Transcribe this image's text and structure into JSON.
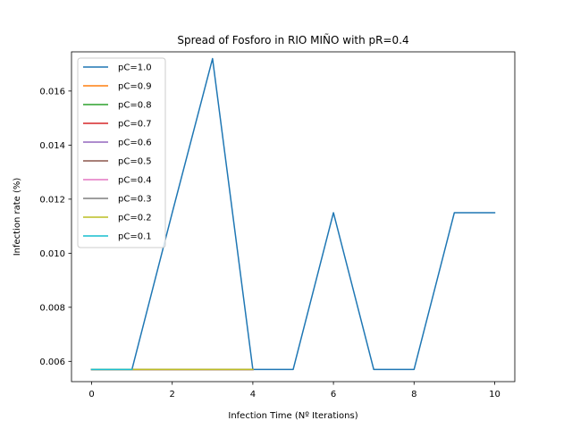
{
  "chart_data": {
    "type": "line",
    "title": "Spread of Fosforo in RIO MIÑO with pR=0.4",
    "xlabel": "Infection Time (Nº Iterations)",
    "ylabel": "Infection rate (%)",
    "xlim": [
      -0.5,
      10.5
    ],
    "ylim": [
      0.00525,
      0.01745
    ],
    "xticks": [
      0,
      2,
      4,
      6,
      8,
      10
    ],
    "xtick_labels": [
      "0",
      "2",
      "4",
      "6",
      "8",
      "10"
    ],
    "yticks": [
      0.006,
      0.008,
      0.01,
      0.012,
      0.014,
      0.016
    ],
    "ytick_labels": [
      "0.006",
      "0.008",
      "0.010",
      "0.012",
      "0.014",
      "0.016"
    ],
    "grid": false,
    "legend_position": "top-left",
    "series": [
      {
        "name": "pC=1.0",
        "color": "#1f77b4",
        "x": [
          0,
          1,
          2,
          3,
          4,
          5,
          6,
          7,
          8,
          9,
          10
        ],
        "y": [
          0.0057,
          0.0057,
          0.0115,
          0.0172,
          0.0057,
          0.0057,
          0.0115,
          0.0057,
          0.0057,
          0.0115,
          0.0115
        ]
      },
      {
        "name": "pC=0.9",
        "color": "#ff7f0e",
        "x": [
          0,
          1,
          2,
          3,
          4
        ],
        "y": [
          0.0057,
          0.0057,
          0.0057,
          0.0057,
          0.0057
        ]
      },
      {
        "name": "pC=0.8",
        "color": "#2ca02c",
        "x": [
          0,
          1,
          2,
          3,
          4
        ],
        "y": [
          0.0057,
          0.0057,
          0.0057,
          0.0057,
          0.0057
        ]
      },
      {
        "name": "pC=0.7",
        "color": "#d62728",
        "x": [
          0,
          1,
          2,
          3,
          4
        ],
        "y": [
          0.0057,
          0.0057,
          0.0057,
          0.0057,
          0.0057
        ]
      },
      {
        "name": "pC=0.6",
        "color": "#9467bd",
        "x": [
          0,
          1,
          2,
          3,
          4
        ],
        "y": [
          0.0057,
          0.0057,
          0.0057,
          0.0057,
          0.0057
        ]
      },
      {
        "name": "pC=0.5",
        "color": "#8c564b",
        "x": [
          0,
          1,
          2,
          3,
          4
        ],
        "y": [
          0.0057,
          0.0057,
          0.0057,
          0.0057,
          0.0057
        ]
      },
      {
        "name": "pC=0.4",
        "color": "#e377c2",
        "x": [
          0,
          1,
          2,
          3,
          4
        ],
        "y": [
          0.0057,
          0.0057,
          0.0057,
          0.0057,
          0.0057
        ]
      },
      {
        "name": "pC=0.3",
        "color": "#7f7f7f",
        "x": [
          0,
          1,
          2,
          3,
          4
        ],
        "y": [
          0.0057,
          0.0057,
          0.0057,
          0.0057,
          0.0057
        ]
      },
      {
        "name": "pC=0.2",
        "color": "#bcbd22",
        "x": [
          0,
          1,
          2,
          3,
          4
        ],
        "y": [
          0.0057,
          0.0057,
          0.0057,
          0.0057,
          0.0057
        ]
      },
      {
        "name": "pC=0.1",
        "color": "#17becf",
        "x": [
          0,
          1
        ],
        "y": [
          0.0057,
          0.0057
        ]
      }
    ]
  }
}
